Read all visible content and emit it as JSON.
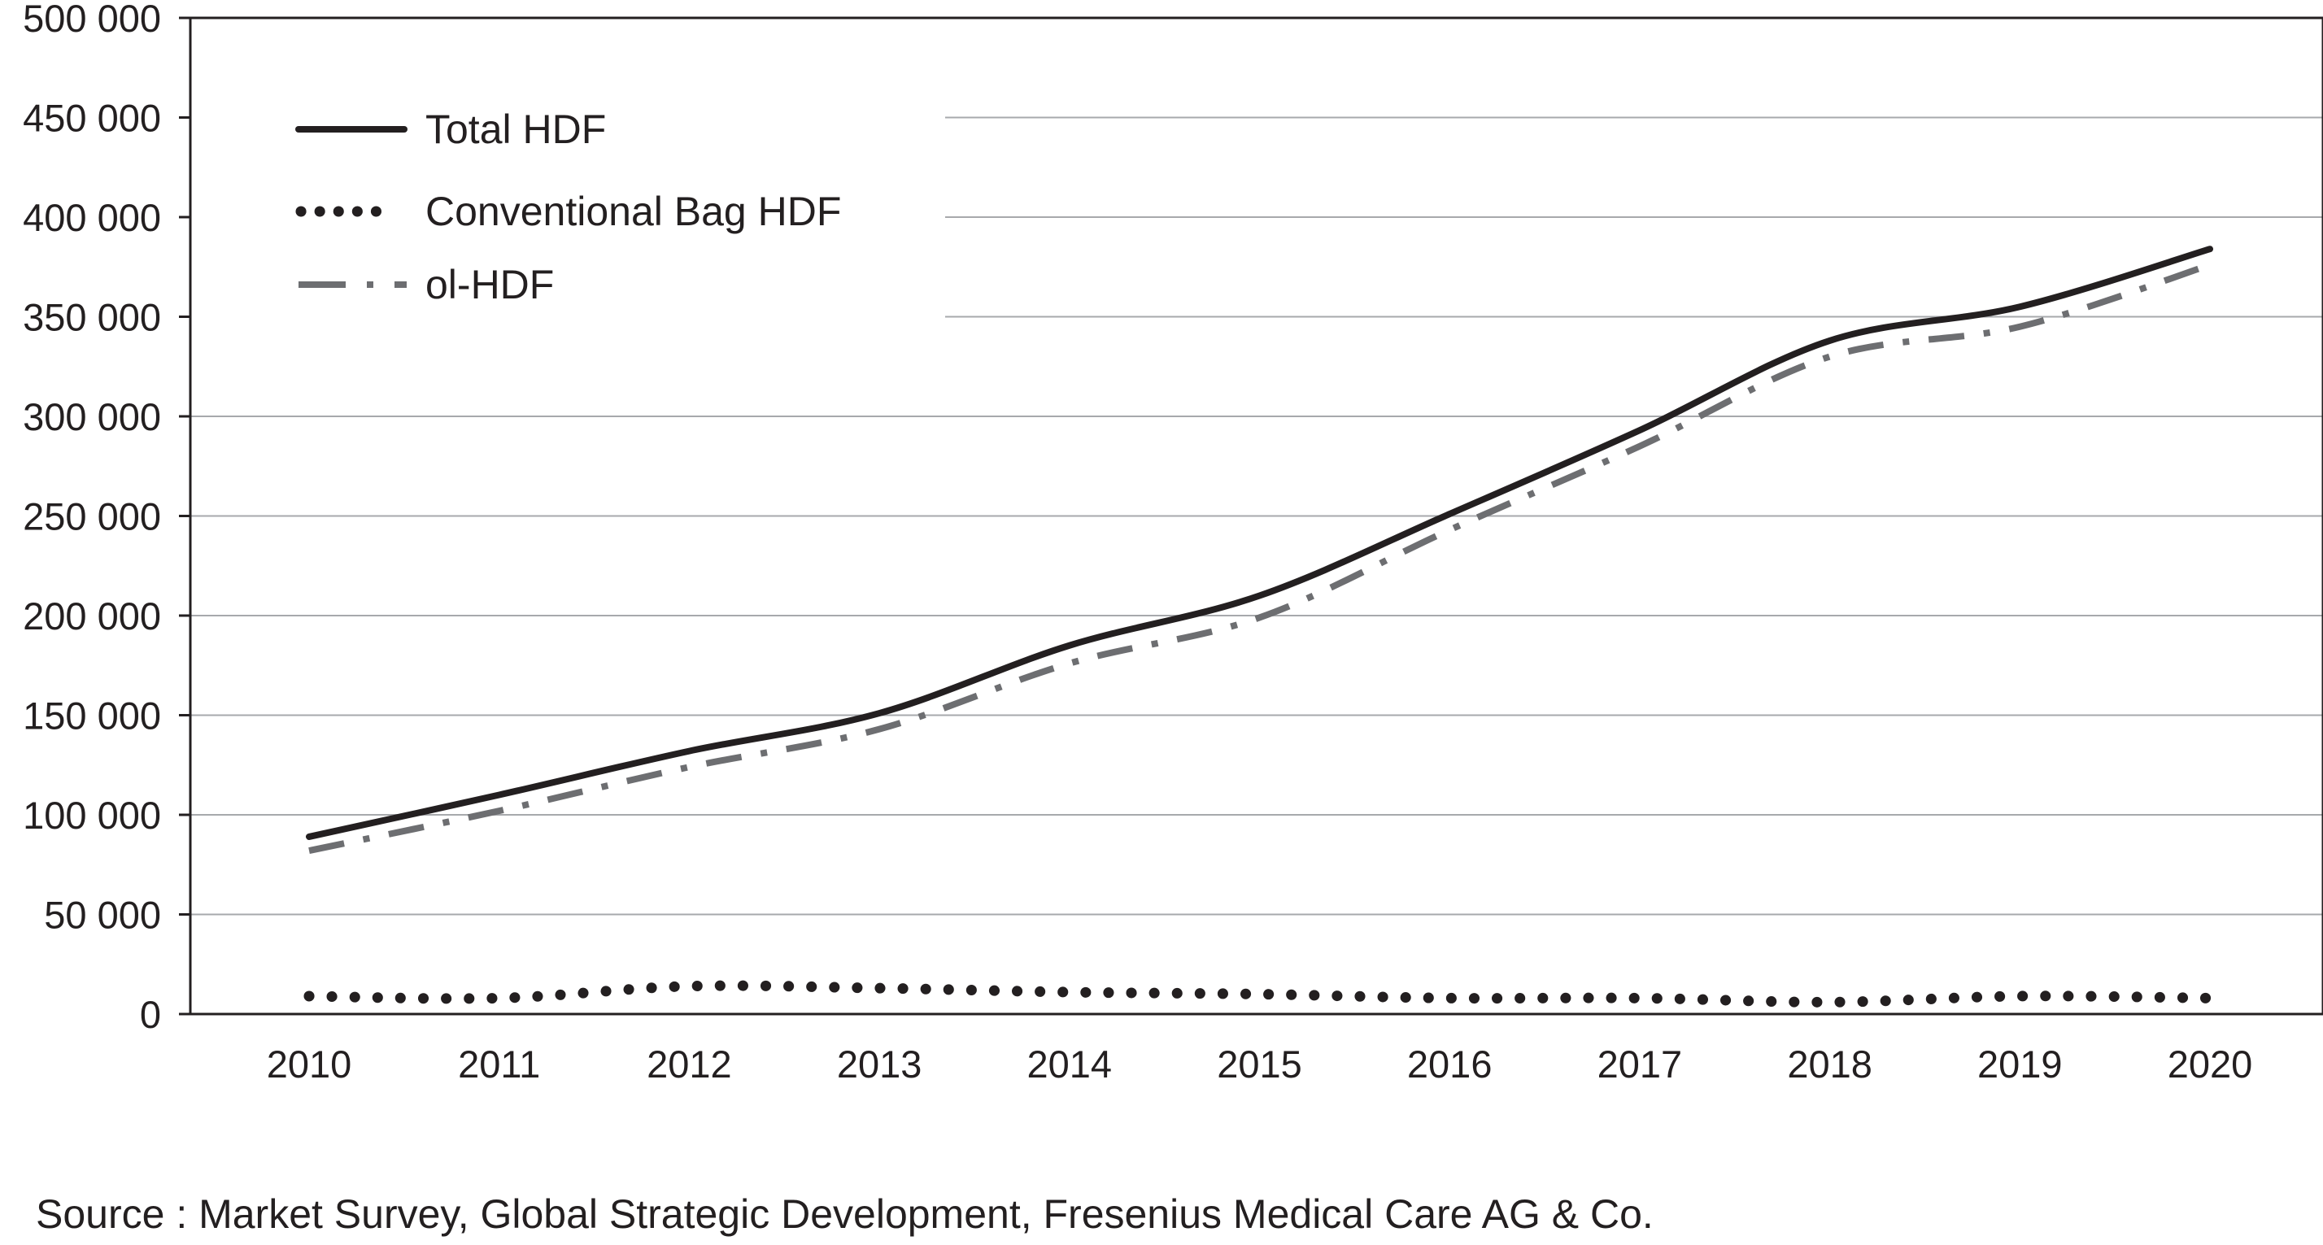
{
  "chart_data": {
    "type": "line",
    "title": "",
    "xlabel": "",
    "ylabel": "",
    "categories": [
      "2010",
      "2011",
      "2012",
      "2013",
      "2014",
      "2015",
      "2016",
      "2017",
      "2018",
      "2019",
      "2020"
    ],
    "x": [
      2010,
      2011,
      2012,
      2013,
      2014,
      2015,
      2016,
      2017,
      2018,
      2019,
      2020
    ],
    "ylim": [
      0,
      500000
    ],
    "yticks": [
      0,
      50000,
      100000,
      150000,
      200000,
      250000,
      300000,
      350000,
      400000,
      450000,
      500000
    ],
    "ytick_labels": [
      "0",
      "50 000",
      "100 000",
      "150 000",
      "200 000",
      "250 000",
      "300 000",
      "350 000",
      "400 000",
      "450 000",
      "500 000"
    ],
    "grid": true,
    "legend_position": "top-left",
    "series": [
      {
        "name": "Total HDF",
        "style": "solid",
        "color": "#231f20",
        "values": [
          89000,
          110000,
          132000,
          151000,
          185000,
          210000,
          251000,
          293000,
          338000,
          355000,
          384000
        ]
      },
      {
        "name": "Conventional Bag HDF",
        "style": "dotted",
        "color": "#231f20",
        "values": [
          9000,
          8000,
          14000,
          13000,
          11000,
          10000,
          8000,
          8000,
          6000,
          9000,
          8000
        ]
      },
      {
        "name": "ol-HDF",
        "style": "dash-dot",
        "color": "#6d6e71",
        "values": [
          82000,
          102000,
          124000,
          143000,
          176000,
          199000,
          243000,
          285000,
          330000,
          345000,
          376000
        ]
      }
    ]
  },
  "source_text": "Source : Market Survey, Global Strategic Development, Fresenius Medical Care AG & Co."
}
